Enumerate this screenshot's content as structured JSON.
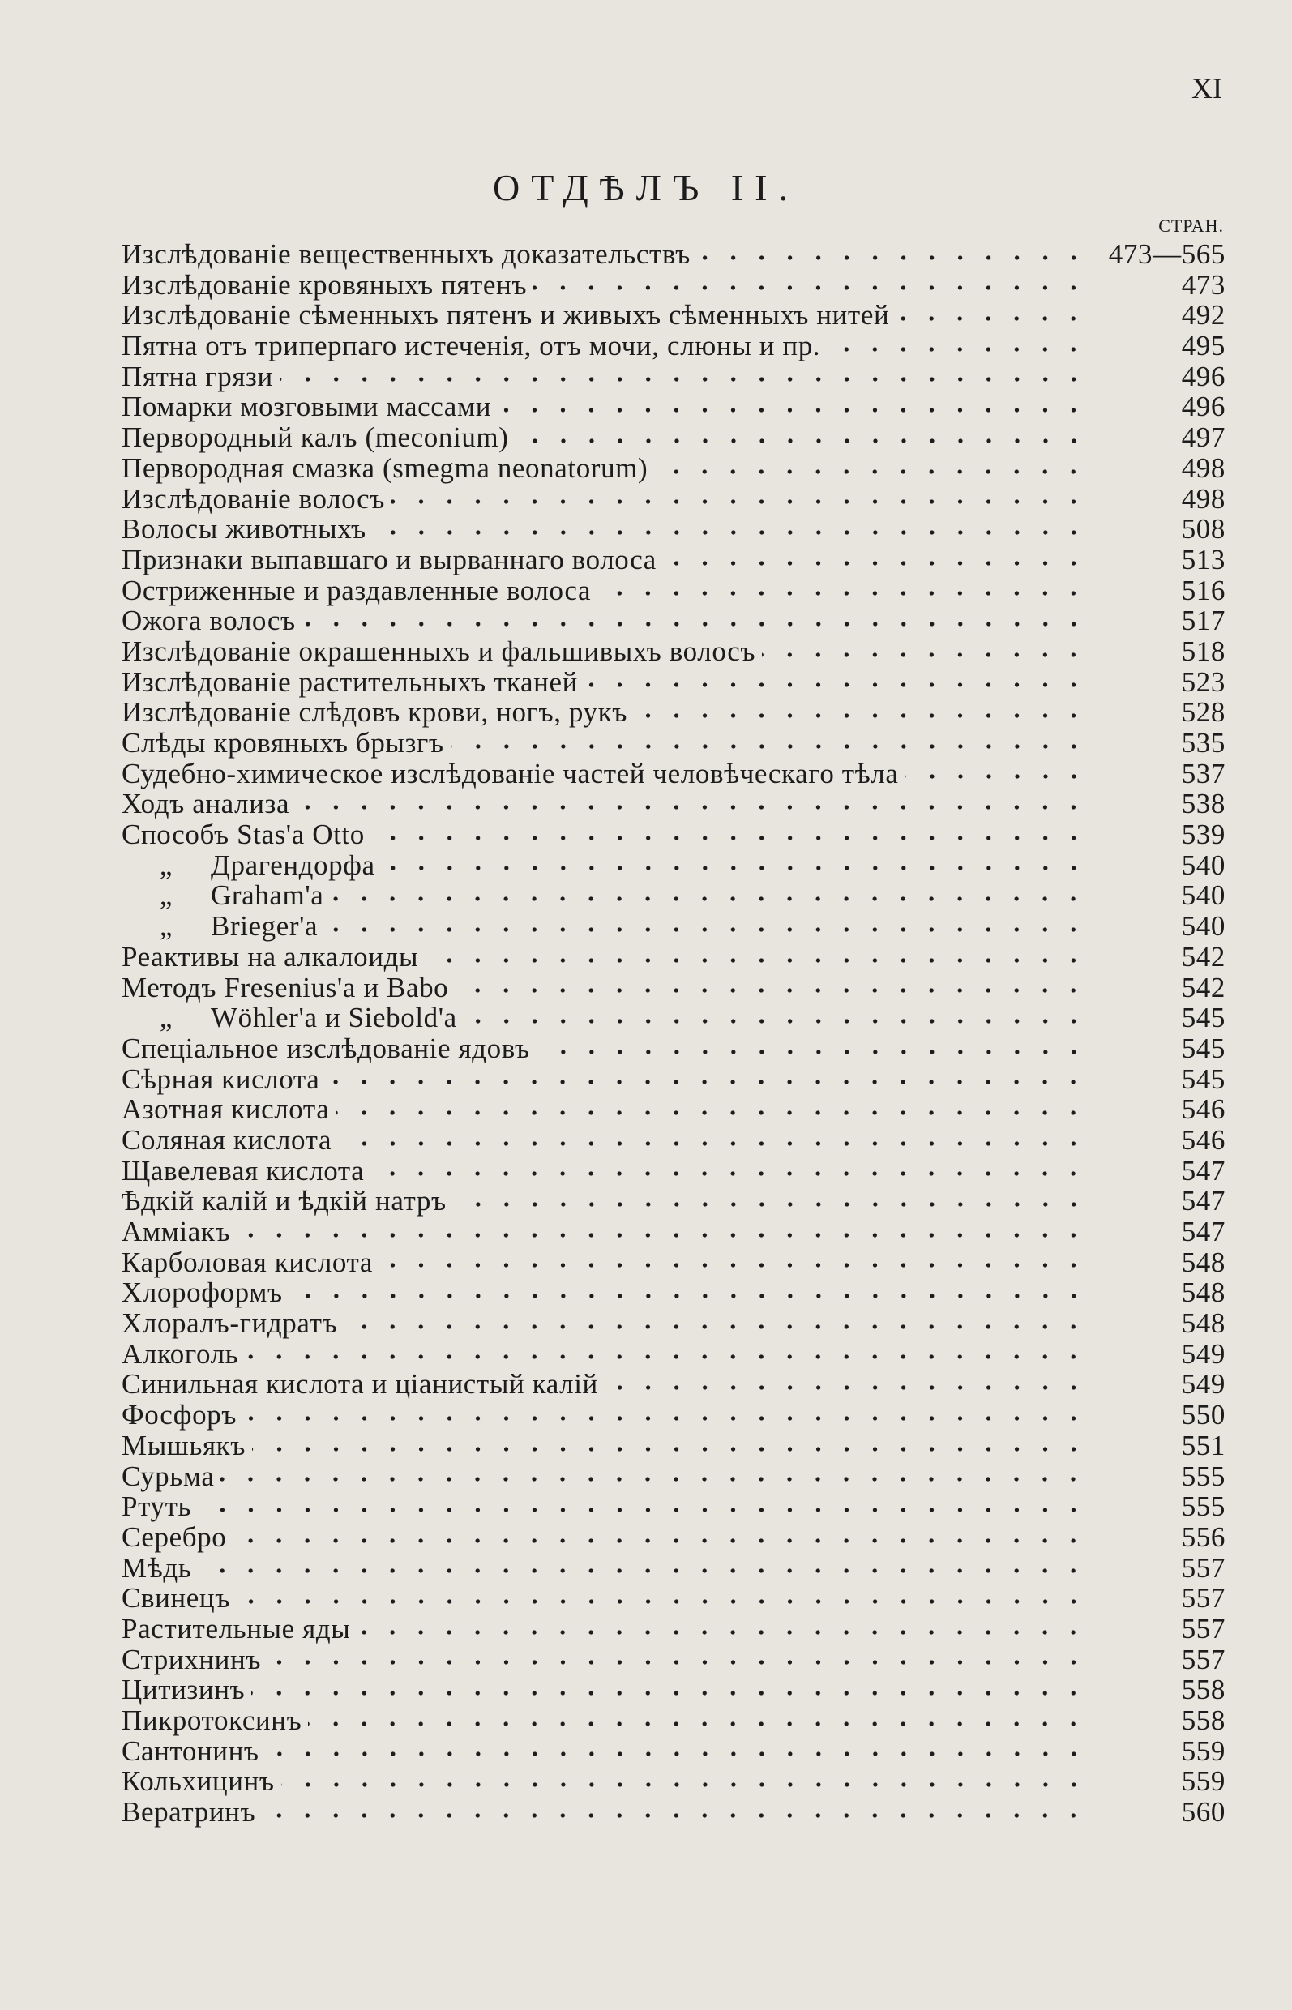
{
  "page_number": "XI",
  "section_title": "ОТДѢЛЪ II.",
  "column_header": "СТРАН.",
  "ditto_mark": "„",
  "entries": [
    {
      "label": "Изслѣдованіе вещественныхъ доказательствъ",
      "page": "473—565"
    },
    {
      "label": "Изслѣдованіе кровяныхъ пятенъ",
      "page": "473"
    },
    {
      "label": "Изслѣдованіе сѣменныхъ пятенъ и живыхъ сѣменныхъ нитей",
      "page": "492"
    },
    {
      "label": "Пятна отъ триперпаго истеченія, отъ мочи, слюны и пр.",
      "page": "495"
    },
    {
      "label": "Пятна грязи",
      "page": "496"
    },
    {
      "label": "Помарки мозговыми массами",
      "page": "496"
    },
    {
      "label": "Первородный калъ (meconium)",
      "page": "497"
    },
    {
      "label": "Первородная смазка (smegma neonatorum)",
      "page": "498"
    },
    {
      "label": "Изслѣдованіе волосъ",
      "page": "498"
    },
    {
      "label": "Волосы животныхъ",
      "page": "508"
    },
    {
      "label": "Признаки выпавшаго и вырваннаго волоса",
      "page": "513"
    },
    {
      "label": "Остриженные и раздавленные волоса",
      "page": "516"
    },
    {
      "label": "Ожога волосъ",
      "page": "517"
    },
    {
      "label": "Изслѣдованіе окрашенныхъ и фальшивыхъ волосъ",
      "page": "518"
    },
    {
      "label": "Изслѣдованіе растительныхъ тканей",
      "page": "523"
    },
    {
      "label": "Изслѣдованіе слѣдовъ крови, ногъ, рукъ",
      "page": "528"
    },
    {
      "label": "Слѣды кровяныхъ брызгъ",
      "page": "535"
    },
    {
      "label": "Судебно-химическое изслѣдованіе частей человѣческаго тѣла",
      "page": "537"
    },
    {
      "label": "Ходъ анализа",
      "page": "538"
    },
    {
      "label": "Способъ Stas'a Otto",
      "page": "539"
    },
    {
      "label": "Драгендорфа",
      "page": "540",
      "ditto": true
    },
    {
      "label": "Graham'a",
      "page": "540",
      "ditto": true
    },
    {
      "label": "Brieger'a",
      "page": "540",
      "ditto": true
    },
    {
      "label": "Реактивы на алкалоиды",
      "page": "542"
    },
    {
      "label": "Методъ Fresenius'a и Babo",
      "page": "542"
    },
    {
      "label": "Wöhler'a и Siebold'a",
      "page": "545",
      "ditto": true
    },
    {
      "label": "Спеціальное изслѣдованіе ядовъ",
      "page": "545"
    },
    {
      "label": "Сѣрная кислота",
      "page": "545"
    },
    {
      "label": "Азотная кислота",
      "page": "546"
    },
    {
      "label": "Соляная кислота",
      "page": "546"
    },
    {
      "label": "Щавелевая кислота",
      "page": "547"
    },
    {
      "label": "Ѣдкій калій и ѣдкій натръ",
      "page": "547"
    },
    {
      "label": "Амміакъ",
      "page": "547"
    },
    {
      "label": "Карболовая кислота",
      "page": "548"
    },
    {
      "label": "Хлороформъ",
      "page": "548"
    },
    {
      "label": "Хлоралъ-гидратъ",
      "page": "548"
    },
    {
      "label": "Алкоголь",
      "page": "549"
    },
    {
      "label": "Синильная кислота и ціанистый калій",
      "page": "549"
    },
    {
      "label": "Фосфоръ",
      "page": "550"
    },
    {
      "label": "Мышьякъ",
      "page": "551"
    },
    {
      "label": "Сурьма",
      "page": "555"
    },
    {
      "label": "Ртуть",
      "page": "555"
    },
    {
      "label": "Серебро",
      "page": "556"
    },
    {
      "label": "Мѣдь",
      "page": "557"
    },
    {
      "label": "Свинецъ",
      "page": "557"
    },
    {
      "label": "Растительные яды",
      "page": "557"
    },
    {
      "label": "Стрихнинъ",
      "page": "557"
    },
    {
      "label": "Цитизинъ",
      "page": "558"
    },
    {
      "label": "Пикротоксинъ",
      "page": "558"
    },
    {
      "label": "Сантонинъ",
      "page": "559"
    },
    {
      "label": "Кольхицинъ",
      "page": "559"
    },
    {
      "label": "Вератринъ",
      "page": "560"
    }
  ]
}
